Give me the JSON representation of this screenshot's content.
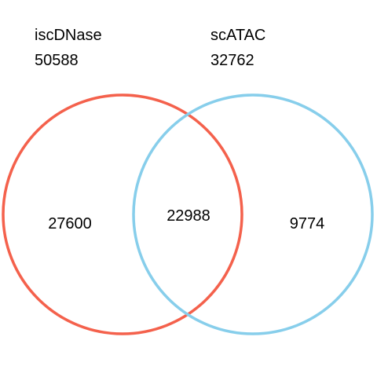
{
  "colors": {
    "set_a": "#f4614c",
    "set_b": "#87ceeb",
    "background": "#ffffff",
    "text": "#000000"
  },
  "sets": [
    {
      "name": "iscDNase",
      "total": "50588"
    },
    {
      "name": "scATAC",
      "total": "32762"
    }
  ],
  "regions": {
    "only_a": "27600",
    "both": "22988",
    "only_b": "9774"
  }
}
